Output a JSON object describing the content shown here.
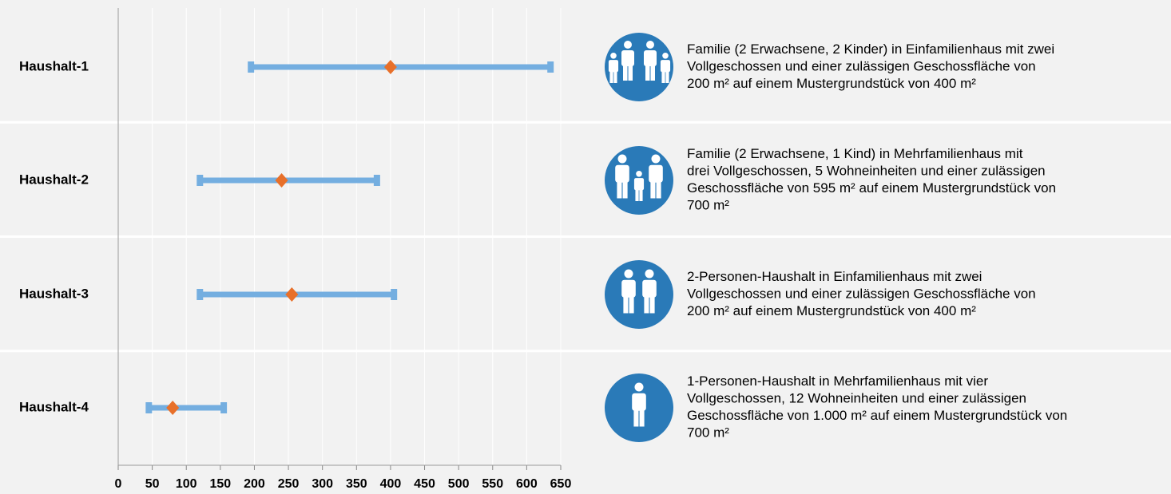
{
  "chart_data": {
    "type": "range",
    "categories": [
      "Haushalt-1",
      "Haushalt-2",
      "Haushalt-3",
      "Haushalt-4"
    ],
    "low": [
      195,
      120,
      120,
      45
    ],
    "high": [
      635,
      380,
      405,
      155
    ],
    "values": [
      400,
      240,
      255,
      80
    ],
    "range_color": "#74aee0",
    "point_color": "#e8702a",
    "xlim": [
      0,
      650
    ],
    "xticks": [
      0,
      50,
      100,
      150,
      200,
      250,
      300,
      350,
      400,
      450,
      500,
      550,
      600,
      650
    ],
    "grid": true,
    "descriptions": [
      [
        "Familie (2 Erwachsene, 2 Kinder) in Einfamilienhaus mit zwei",
        "Vollgeschossen und einer zulässigen Geschossfläche von",
        "200 m² auf einem Mustergrundstück von 400 m²"
      ],
      [
        "Familie (2 Erwachsene, 1 Kind) in Mehrfamilienhaus mit",
        "drei Vollgeschossen, 5 Wohneinheiten und einer zulässigen",
        "Geschossfläche von 595 m² auf einem Mustergrundstück von",
        "700 m²"
      ],
      [
        "2-Personen-Haushalt in Einfamilienhaus mit zwei",
        "Vollgeschossen und einer zulässigen Geschossfläche von",
        "200 m² auf einem Mustergrundstück von 400 m²"
      ],
      [
        "1-Personen-Haushalt in Mehrfamilienhaus mit vier",
        "Vollgeschossen, 12 Wohneinheiten und einer zulässigen",
        "Geschossfläche von 1.000 m² auf einem Mustergrundstück von",
        "700 m²"
      ]
    ]
  }
}
